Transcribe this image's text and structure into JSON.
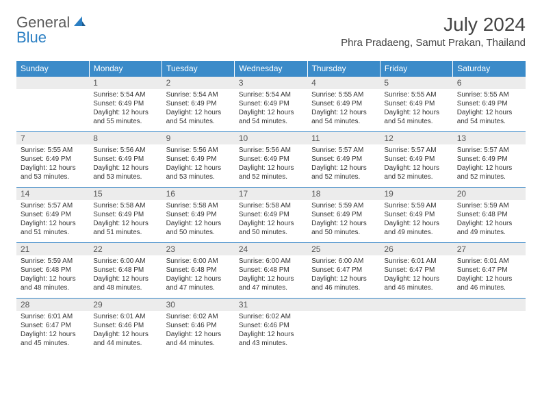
{
  "logo": {
    "text1": "General",
    "text2": "Blue"
  },
  "title": "July 2024",
  "location": "Phra Pradaeng, Samut Prakan, Thailand",
  "colors": {
    "header_bg": "#3b8bc9",
    "header_text": "#ffffff",
    "daynum_bg": "#ececec",
    "border": "#2b7fc3",
    "logo_gray": "#5a5a5a",
    "logo_blue": "#2b7fc3"
  },
  "weekdays": [
    "Sunday",
    "Monday",
    "Tuesday",
    "Wednesday",
    "Thursday",
    "Friday",
    "Saturday"
  ],
  "weeks": [
    {
      "nums": [
        "",
        "1",
        "2",
        "3",
        "4",
        "5",
        "6"
      ],
      "cells": [
        null,
        {
          "sunrise": "Sunrise: 5:54 AM",
          "sunset": "Sunset: 6:49 PM",
          "day1": "Daylight: 12 hours",
          "day2": "and 55 minutes."
        },
        {
          "sunrise": "Sunrise: 5:54 AM",
          "sunset": "Sunset: 6:49 PM",
          "day1": "Daylight: 12 hours",
          "day2": "and 54 minutes."
        },
        {
          "sunrise": "Sunrise: 5:54 AM",
          "sunset": "Sunset: 6:49 PM",
          "day1": "Daylight: 12 hours",
          "day2": "and 54 minutes."
        },
        {
          "sunrise": "Sunrise: 5:55 AM",
          "sunset": "Sunset: 6:49 PM",
          "day1": "Daylight: 12 hours",
          "day2": "and 54 minutes."
        },
        {
          "sunrise": "Sunrise: 5:55 AM",
          "sunset": "Sunset: 6:49 PM",
          "day1": "Daylight: 12 hours",
          "day2": "and 54 minutes."
        },
        {
          "sunrise": "Sunrise: 5:55 AM",
          "sunset": "Sunset: 6:49 PM",
          "day1": "Daylight: 12 hours",
          "day2": "and 54 minutes."
        }
      ]
    },
    {
      "nums": [
        "7",
        "8",
        "9",
        "10",
        "11",
        "12",
        "13"
      ],
      "cells": [
        {
          "sunrise": "Sunrise: 5:55 AM",
          "sunset": "Sunset: 6:49 PM",
          "day1": "Daylight: 12 hours",
          "day2": "and 53 minutes."
        },
        {
          "sunrise": "Sunrise: 5:56 AM",
          "sunset": "Sunset: 6:49 PM",
          "day1": "Daylight: 12 hours",
          "day2": "and 53 minutes."
        },
        {
          "sunrise": "Sunrise: 5:56 AM",
          "sunset": "Sunset: 6:49 PM",
          "day1": "Daylight: 12 hours",
          "day2": "and 53 minutes."
        },
        {
          "sunrise": "Sunrise: 5:56 AM",
          "sunset": "Sunset: 6:49 PM",
          "day1": "Daylight: 12 hours",
          "day2": "and 52 minutes."
        },
        {
          "sunrise": "Sunrise: 5:57 AM",
          "sunset": "Sunset: 6:49 PM",
          "day1": "Daylight: 12 hours",
          "day2": "and 52 minutes."
        },
        {
          "sunrise": "Sunrise: 5:57 AM",
          "sunset": "Sunset: 6:49 PM",
          "day1": "Daylight: 12 hours",
          "day2": "and 52 minutes."
        },
        {
          "sunrise": "Sunrise: 5:57 AM",
          "sunset": "Sunset: 6:49 PM",
          "day1": "Daylight: 12 hours",
          "day2": "and 52 minutes."
        }
      ]
    },
    {
      "nums": [
        "14",
        "15",
        "16",
        "17",
        "18",
        "19",
        "20"
      ],
      "cells": [
        {
          "sunrise": "Sunrise: 5:57 AM",
          "sunset": "Sunset: 6:49 PM",
          "day1": "Daylight: 12 hours",
          "day2": "and 51 minutes."
        },
        {
          "sunrise": "Sunrise: 5:58 AM",
          "sunset": "Sunset: 6:49 PM",
          "day1": "Daylight: 12 hours",
          "day2": "and 51 minutes."
        },
        {
          "sunrise": "Sunrise: 5:58 AM",
          "sunset": "Sunset: 6:49 PM",
          "day1": "Daylight: 12 hours",
          "day2": "and 50 minutes."
        },
        {
          "sunrise": "Sunrise: 5:58 AM",
          "sunset": "Sunset: 6:49 PM",
          "day1": "Daylight: 12 hours",
          "day2": "and 50 minutes."
        },
        {
          "sunrise": "Sunrise: 5:59 AM",
          "sunset": "Sunset: 6:49 PM",
          "day1": "Daylight: 12 hours",
          "day2": "and 50 minutes."
        },
        {
          "sunrise": "Sunrise: 5:59 AM",
          "sunset": "Sunset: 6:49 PM",
          "day1": "Daylight: 12 hours",
          "day2": "and 49 minutes."
        },
        {
          "sunrise": "Sunrise: 5:59 AM",
          "sunset": "Sunset: 6:48 PM",
          "day1": "Daylight: 12 hours",
          "day2": "and 49 minutes."
        }
      ]
    },
    {
      "nums": [
        "21",
        "22",
        "23",
        "24",
        "25",
        "26",
        "27"
      ],
      "cells": [
        {
          "sunrise": "Sunrise: 5:59 AM",
          "sunset": "Sunset: 6:48 PM",
          "day1": "Daylight: 12 hours",
          "day2": "and 48 minutes."
        },
        {
          "sunrise": "Sunrise: 6:00 AM",
          "sunset": "Sunset: 6:48 PM",
          "day1": "Daylight: 12 hours",
          "day2": "and 48 minutes."
        },
        {
          "sunrise": "Sunrise: 6:00 AM",
          "sunset": "Sunset: 6:48 PM",
          "day1": "Daylight: 12 hours",
          "day2": "and 47 minutes."
        },
        {
          "sunrise": "Sunrise: 6:00 AM",
          "sunset": "Sunset: 6:48 PM",
          "day1": "Daylight: 12 hours",
          "day2": "and 47 minutes."
        },
        {
          "sunrise": "Sunrise: 6:00 AM",
          "sunset": "Sunset: 6:47 PM",
          "day1": "Daylight: 12 hours",
          "day2": "and 46 minutes."
        },
        {
          "sunrise": "Sunrise: 6:01 AM",
          "sunset": "Sunset: 6:47 PM",
          "day1": "Daylight: 12 hours",
          "day2": "and 46 minutes."
        },
        {
          "sunrise": "Sunrise: 6:01 AM",
          "sunset": "Sunset: 6:47 PM",
          "day1": "Daylight: 12 hours",
          "day2": "and 46 minutes."
        }
      ]
    },
    {
      "nums": [
        "28",
        "29",
        "30",
        "31",
        "",
        "",
        ""
      ],
      "cells": [
        {
          "sunrise": "Sunrise: 6:01 AM",
          "sunset": "Sunset: 6:47 PM",
          "day1": "Daylight: 12 hours",
          "day2": "and 45 minutes."
        },
        {
          "sunrise": "Sunrise: 6:01 AM",
          "sunset": "Sunset: 6:46 PM",
          "day1": "Daylight: 12 hours",
          "day2": "and 44 minutes."
        },
        {
          "sunrise": "Sunrise: 6:02 AM",
          "sunset": "Sunset: 6:46 PM",
          "day1": "Daylight: 12 hours",
          "day2": "and 44 minutes."
        },
        {
          "sunrise": "Sunrise: 6:02 AM",
          "sunset": "Sunset: 6:46 PM",
          "day1": "Daylight: 12 hours",
          "day2": "and 43 minutes."
        },
        null,
        null,
        null
      ]
    }
  ]
}
